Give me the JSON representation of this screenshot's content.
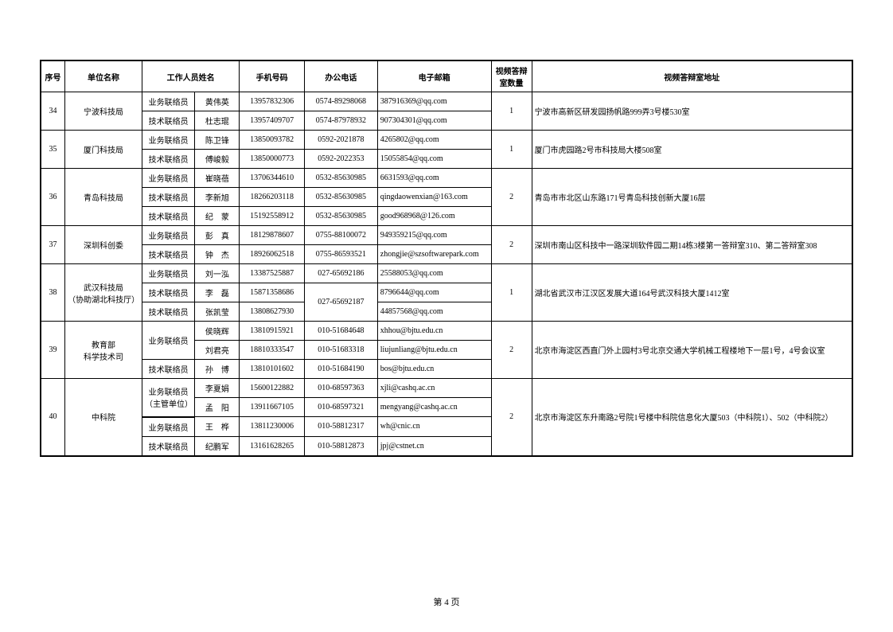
{
  "headers": {
    "seq": "序号",
    "org": "单位名称",
    "staff": "工作人员姓名",
    "mobile": "手机号码",
    "phone": "办公电话",
    "email": "电子邮箱",
    "count": "视频答辩室数量",
    "addr": "视频答辩室地址"
  },
  "footer": "第 4 页",
  "rows": [
    {
      "seq": "34",
      "org": "宁波科技局",
      "count": "1",
      "addr": "宁波市高新区研发园扬帆路999弄3号楼530室",
      "contacts": [
        {
          "role": "业务联络员",
          "name": "黄伟英",
          "mobile": "13957832306",
          "phone": "0574-89298068",
          "email": "387916369@qq.com"
        },
        {
          "role": "技术联络员",
          "name": "杜志琨",
          "mobile": "13957409707",
          "phone": "0574-87978932",
          "email": "907304301@qq.com"
        }
      ]
    },
    {
      "seq": "35",
      "org": "厦门科技局",
      "count": "1",
      "addr": "厦门市虎园路2号市科技局大楼508室",
      "contacts": [
        {
          "role": "业务联络员",
          "name": "陈卫锋",
          "mobile": "13850093782",
          "phone": "0592-2021878",
          "email": "4265802@qq.com"
        },
        {
          "role": "技术联络员",
          "name": "傅峻毅",
          "mobile": "13850000773",
          "phone": "0592-2022353",
          "email": "15055854@qq.com"
        }
      ]
    },
    {
      "seq": "36",
      "org": "青岛科技局",
      "count": "2",
      "addr": "青岛市市北区山东路171号青岛科技创新大厦16层",
      "contacts": [
        {
          "role": "业务联络员",
          "name": "崔晓蓓",
          "mobile": "13706344610",
          "phone": "0532-85630985",
          "email": "6631593@qq.com"
        },
        {
          "role": "技术联络员",
          "name": "李新旭",
          "mobile": "18266203118",
          "phone": "0532-85630985",
          "email": "qingdaowenxian@163.com"
        },
        {
          "role": "技术联络员",
          "name": "纪　蒙",
          "mobile": "15192558912",
          "phone": "0532-85630985",
          "email": "good968968@126.com"
        }
      ]
    },
    {
      "seq": "37",
      "org": "深圳科创委",
      "count": "2",
      "addr": "深圳市南山区科技中一路深圳软件园二期14栋3楼第一答辩室310、第二答辩室308",
      "contacts": [
        {
          "role": "业务联络员",
          "name": "彭　真",
          "mobile": "18129878607",
          "phone": "0755-88100072",
          "email": "949359215@qq.com"
        },
        {
          "role": "技术联络员",
          "name": "钟　杰",
          "mobile": "18926062518",
          "phone": "0755-86593521",
          "email": "zhongjie@szsoftwarepark.com"
        }
      ]
    },
    {
      "seq": "38",
      "org": "武汉科技局\n（协助湖北科技厅）",
      "count": "1",
      "addr": "湖北省武汉市江汉区发展大道164号武汉科技大厦1412室",
      "phone_shared": "027-65692187",
      "contacts": [
        {
          "role": "业务联络员",
          "name": "刘一泓",
          "mobile": "13387525887",
          "phone": "027-65692186",
          "email": "25588053@qq.com"
        },
        {
          "role": "技术联络员",
          "name": "李　磊",
          "mobile": "15871358686",
          "email": "8796644@qq.com"
        },
        {
          "role": "技术联络员",
          "name": "张凯莹",
          "mobile": "13808627930",
          "email": "44857568@qq.com"
        }
      ]
    },
    {
      "seq": "39",
      "org": "教育部\n科学技术司",
      "count": "2",
      "addr": "北京市海淀区西直门外上园村3号北京交通大学机械工程楼地下一层1号，4号会议室",
      "role_shared": "业务联络员",
      "contacts": [
        {
          "name": "侯晓辉",
          "mobile": "13810915921",
          "phone": "010-51684648",
          "email": "xhhou@bjtu.edu.cn"
        },
        {
          "name": "刘君亮",
          "mobile": "18810333547",
          "phone": "010-51683318",
          "email": "liujunliang@bjtu.edu.cn"
        },
        {
          "role": "技术联络员",
          "name": "孙　博",
          "mobile": "13810101602",
          "phone": "010-51684190",
          "email": "bos@bjtu.edu.cn"
        }
      ]
    },
    {
      "seq": "40",
      "org": "中科院",
      "count": "2",
      "addr": "北京市海淀区东升南路2号院1号楼中科院信息化大厦503（中科院1）、502（中科院2）",
      "role_shared": "业务联络员\n（主管单位）",
      "contacts": [
        {
          "name": "李夏娟",
          "mobile": "15600122882",
          "phone": "010-68597363",
          "email": "xjli@cashq.ac.cn"
        },
        {
          "name": "孟　阳",
          "mobile": "13911667105",
          "phone": "010-68597321",
          "email": "mengyang@cashq.ac.cn"
        },
        {
          "role": "业务联络员",
          "name": "王　桦",
          "mobile": "13811230006",
          "phone": "010-58812317",
          "email": "wh@cnic.cn"
        },
        {
          "role": "技术联络员",
          "name": "纪鹏军",
          "mobile": "13161628265",
          "phone": "010-58812873",
          "email": "jpj@cstnet.cn"
        }
      ]
    }
  ]
}
